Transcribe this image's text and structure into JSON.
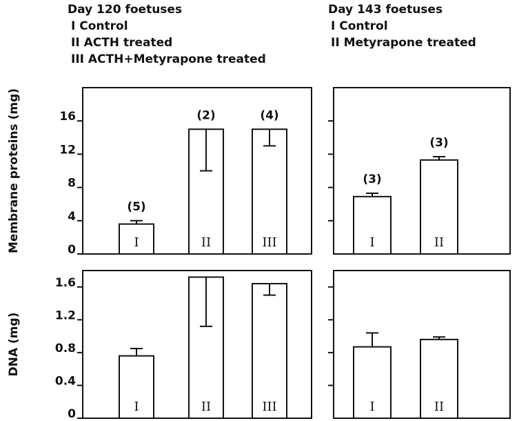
{
  "headers": [
    {
      "title": "Day 120 foetuses",
      "legend": [
        "I Control",
        "II ACTH treated",
        "III ACTH+Metyrapone treated"
      ]
    },
    {
      "title": "Day 143 foetuses",
      "legend": [
        "I Control",
        "II Metyrapone treated"
      ]
    }
  ],
  "chart_data": [
    {
      "type": "bar",
      "ylabel": "Membrane proteins (mg)",
      "categories": [
        "I",
        "II",
        "III"
      ],
      "values": [
        3.6,
        15,
        15
      ],
      "errors": [
        0.4,
        5,
        2
      ],
      "error_directions": [
        "up",
        "down",
        "down"
      ],
      "n_labels": [
        "(5)",
        "(2)",
        "(4)"
      ],
      "ylim": [
        0,
        20
      ],
      "yticks": [
        0,
        4,
        8,
        12,
        16
      ],
      "tick_labels": true,
      "color": "#ffffff"
    },
    {
      "type": "bar",
      "categories": [
        "I",
        "II"
      ],
      "values": [
        6.9,
        11.3
      ],
      "errors": [
        0.4,
        0.4
      ],
      "error_directions": [
        "up",
        "up"
      ],
      "n_labels": [
        "(3)",
        "(3)"
      ],
      "ylim": [
        0,
        20
      ],
      "yticks": [
        4,
        8,
        12,
        16
      ],
      "tick_labels": false,
      "color": "#ffffff"
    },
    {
      "type": "bar",
      "ylabel": "DNA (mg)",
      "categories": [
        "I",
        "II",
        "III"
      ],
      "values": [
        0.76,
        1.72,
        1.64
      ],
      "errors": [
        0.09,
        0.6,
        0.14
      ],
      "error_directions": [
        "up",
        "down",
        "down"
      ],
      "ylim": [
        0,
        1.8
      ],
      "yticks": [
        0,
        0.4,
        0.8,
        1.2,
        1.6
      ],
      "tick_labels": true,
      "color": "#ffffff"
    },
    {
      "type": "bar",
      "categories": [
        "I",
        "II"
      ],
      "values": [
        0.87,
        0.96
      ],
      "errors": [
        0.17,
        0.03
      ],
      "error_directions": [
        "up",
        "up"
      ],
      "ylim": [
        0,
        1.8
      ],
      "yticks": [
        0.4,
        0.8,
        1.2,
        1.6
      ],
      "tick_labels": false,
      "color": "#ffffff"
    }
  ]
}
